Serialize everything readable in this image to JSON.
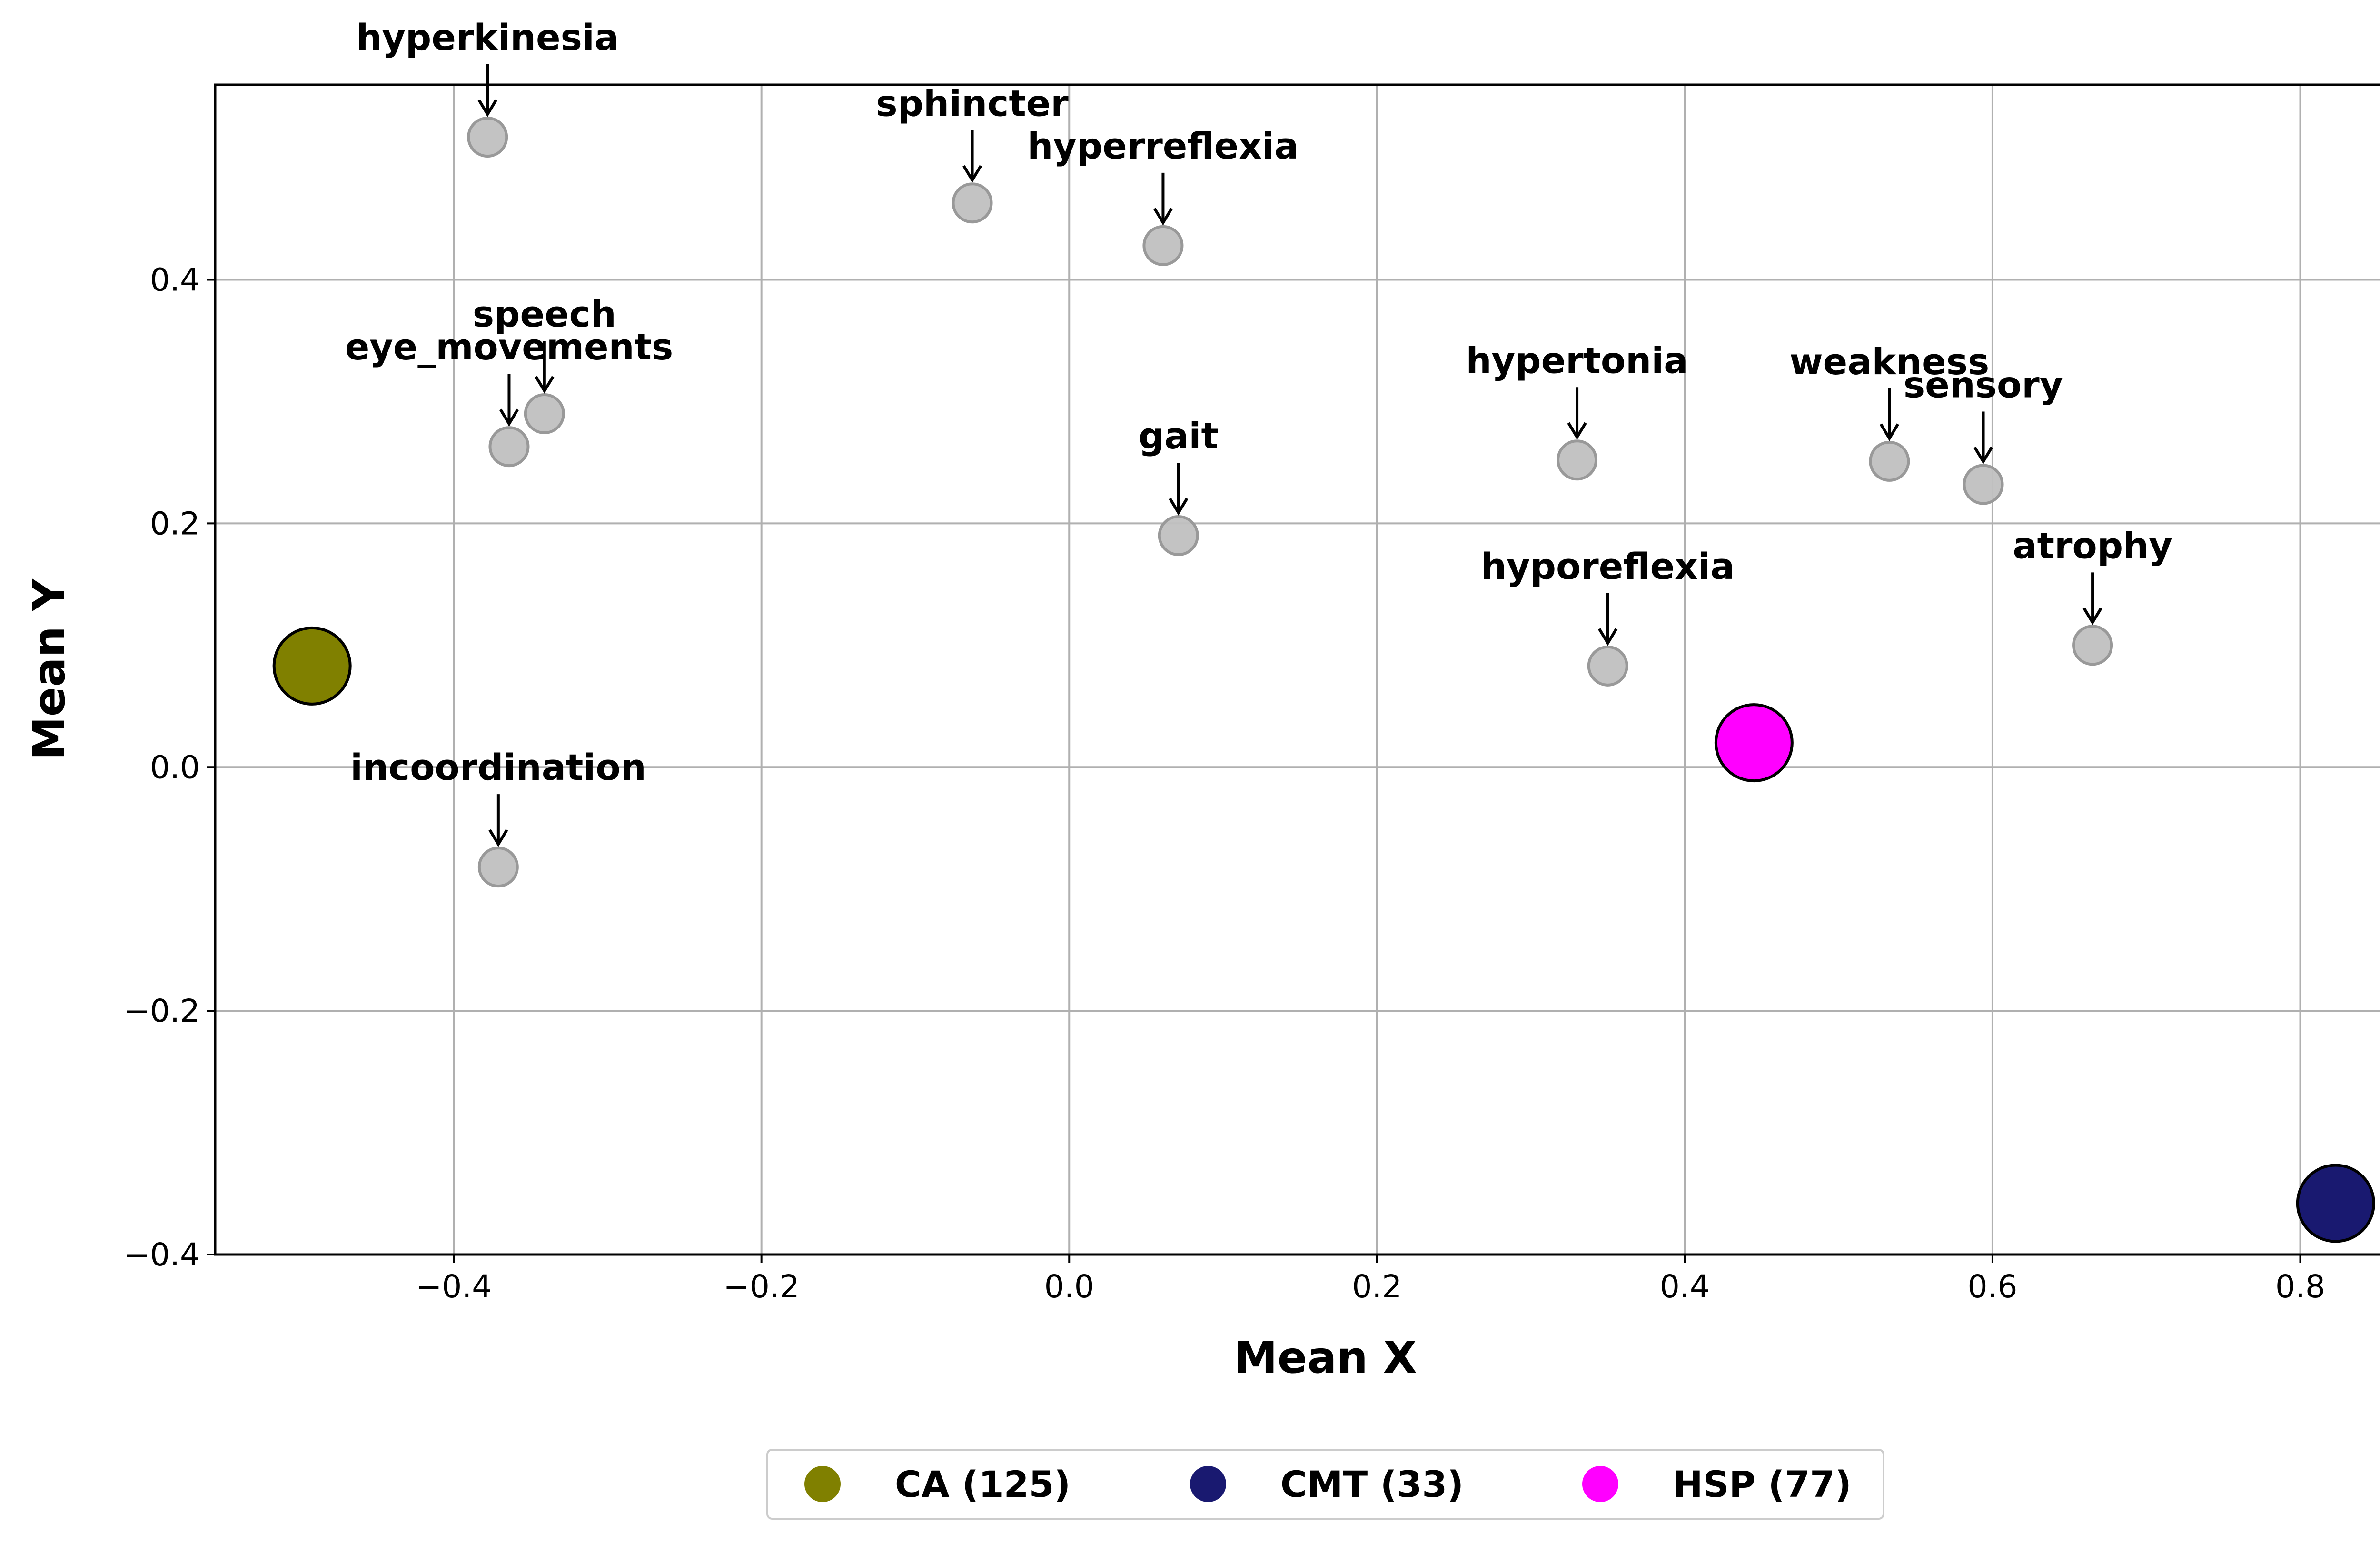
{
  "chart_data": {
    "type": "scatter",
    "xlabel": "Mean X",
    "ylabel": "Mean Y",
    "xlim": [
      -0.555,
      0.888
    ],
    "ylim": [
      -0.4,
      0.56
    ],
    "xticks": [
      -0.4,
      -0.2,
      0.0,
      0.2,
      0.4,
      0.6,
      0.8
    ],
    "xtick_labels": [
      "−0.4",
      "−0.2",
      "0.0",
      "0.2",
      "0.4",
      "0.6",
      "0.8"
    ],
    "yticks": [
      -0.4,
      -0.2,
      0.0,
      0.2,
      0.4
    ],
    "ytick_labels": [
      "−0.4",
      "−0.2",
      "0.0",
      "0.2",
      "0.4"
    ],
    "grid": true,
    "legend_placement": "bottom-center, below plot",
    "features": [
      {
        "label": "hyperkinesia",
        "x": -0.378,
        "y": 0.517
      },
      {
        "label": "sphincter",
        "x": -0.063,
        "y": 0.463
      },
      {
        "label": "hyperreflexia",
        "x": 0.061,
        "y": 0.428
      },
      {
        "label": "speech",
        "x": -0.341,
        "y": 0.29
      },
      {
        "label": "eye_movements",
        "x": -0.364,
        "y": 0.263
      },
      {
        "label": "gait",
        "x": 0.071,
        "y": 0.19
      },
      {
        "label": "hypertonia",
        "x": 0.33,
        "y": 0.252
      },
      {
        "label": "weakness",
        "x": 0.533,
        "y": 0.251
      },
      {
        "label": "sensory",
        "x": 0.594,
        "y": 0.232
      },
      {
        "label": "atrophy",
        "x": 0.665,
        "y": 0.1
      },
      {
        "label": "hyporeflexia",
        "x": 0.35,
        "y": 0.083
      },
      {
        "label": "incoordination",
        "x": -0.371,
        "y": -0.082
      }
    ],
    "groups": [
      {
        "name": "CA (125)",
        "x": -0.492,
        "y": 0.083,
        "color": "#808000"
      },
      {
        "name": "CMT (33)",
        "x": 0.823,
        "y": -0.358,
        "color": "#191970"
      },
      {
        "name": "HSP (77)",
        "x": 0.445,
        "y": 0.02,
        "color": "#ff00ff"
      }
    ],
    "feature_color": "#c0c0c0"
  }
}
